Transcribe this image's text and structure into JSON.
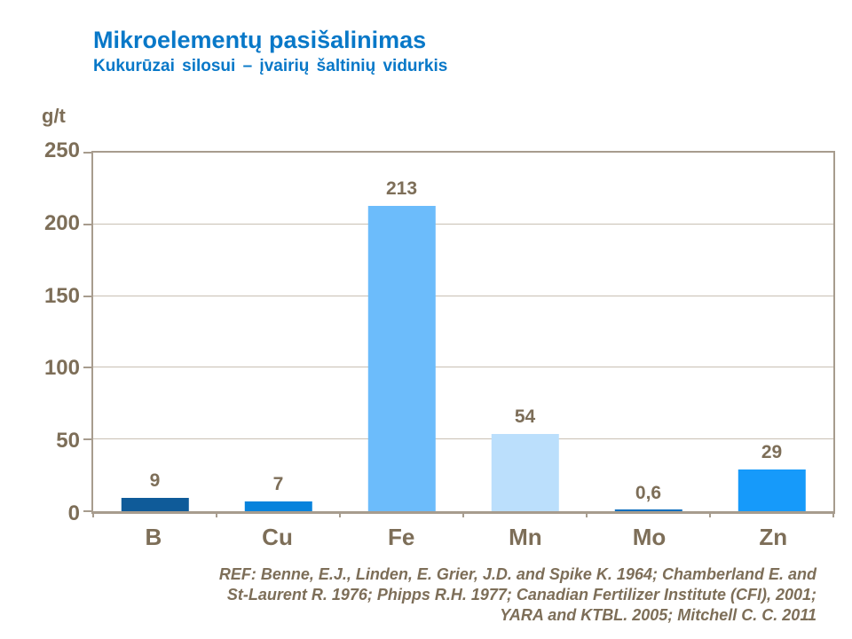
{
  "slide": {
    "title": "Mikroelementų pasišalinimas",
    "subtitle": "Kukurūzai silosui – įvairių šaltinių vidurkis",
    "title_color": "#0878C8"
  },
  "chart_data": {
    "type": "bar",
    "title": "Mikroelementų pasišalinimas",
    "subtitle": "Kukurūzai silosui – įvairių šaltinių vidurkis",
    "unit_label": "g/t",
    "categories": [
      "B",
      "Cu",
      "Fe",
      "Mn",
      "Mo",
      "Zn"
    ],
    "values": [
      9,
      7,
      213,
      54,
      0.6,
      29
    ],
    "value_labels": [
      "9",
      "7",
      "213",
      "54",
      "0,6",
      "29"
    ],
    "bar_colors": [
      "#0F5B99",
      "#0883DC",
      "#6CBCFB",
      "#BBDFFC",
      "#1170BE",
      "#169AFA"
    ],
    "ylim": [
      0,
      250
    ],
    "yticks": [
      0,
      50,
      100,
      150,
      200,
      250
    ],
    "grid": true,
    "legend": "none",
    "axis_color": "#A79C8E",
    "gridline_color": "#C9C0B4",
    "label_color": "#7D6E58"
  },
  "footer": {
    "ref_lines": [
      "REF: Benne, E.J., Linden, E. Grier, J.D. and Spike K. 1964; Chamberland  E. and",
      "St-Laurent R. 1976; Phipps R.H. 1977; Canadian Fertilizer Institute (CFI), 2001;",
      "YARA and KTBL. 2005; Mitchell C. C. 2011"
    ]
  }
}
